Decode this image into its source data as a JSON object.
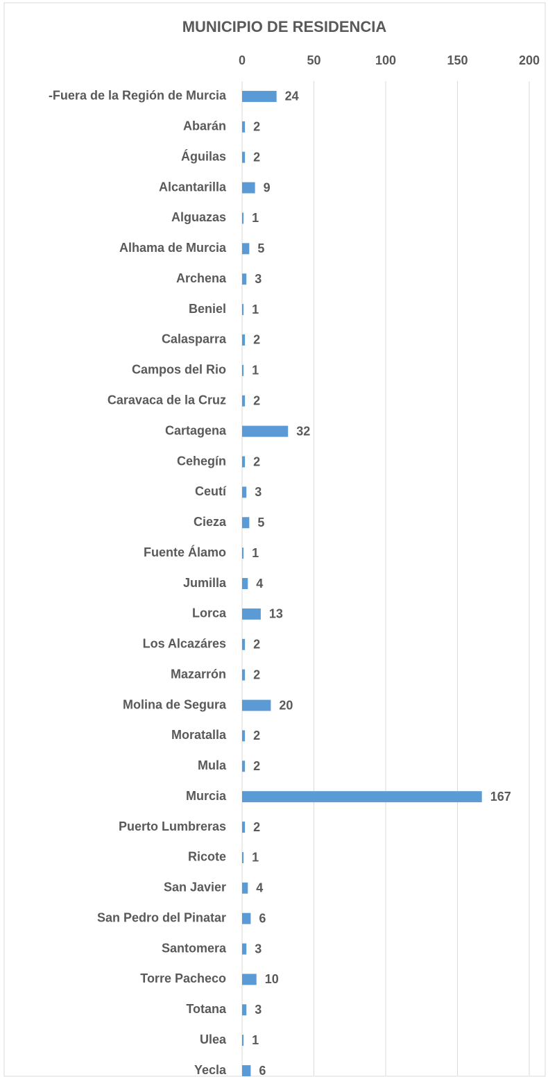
{
  "chart_data": {
    "type": "bar",
    "orientation": "horizontal",
    "title": "MUNICIPIO DE RESIDENCIA",
    "categories": [
      "-Fuera de la Región de Murcia",
      "Abarán",
      "Águilas",
      "Alcantarilla",
      "Alguazas",
      "Alhama de Murcia",
      "Archena",
      "Beniel",
      "Calasparra",
      "Campos del Rio",
      "Caravaca de la Cruz",
      "Cartagena",
      "Cehegín",
      "Ceutí",
      "Cieza",
      "Fuente Álamo",
      "Jumilla",
      "Lorca",
      "Los Alcazáres",
      "Mazarrón",
      "Molina de Segura",
      "Moratalla",
      "Mula",
      "Murcia",
      "Puerto Lumbreras",
      "Ricote",
      "San Javier",
      "San Pedro del Pinatar",
      "Santomera",
      "Torre Pacheco",
      "Totana",
      "Ulea",
      "Yecla"
    ],
    "values": [
      24,
      2,
      2,
      9,
      1,
      5,
      3,
      1,
      2,
      1,
      2,
      32,
      2,
      3,
      5,
      1,
      4,
      13,
      2,
      2,
      20,
      2,
      2,
      167,
      2,
      1,
      4,
      6,
      3,
      10,
      3,
      1,
      6
    ],
    "color": "#5b9bd5",
    "xlim": [
      0,
      200
    ],
    "xticks": [
      0,
      50,
      100,
      150,
      200
    ],
    "grid": true
  }
}
